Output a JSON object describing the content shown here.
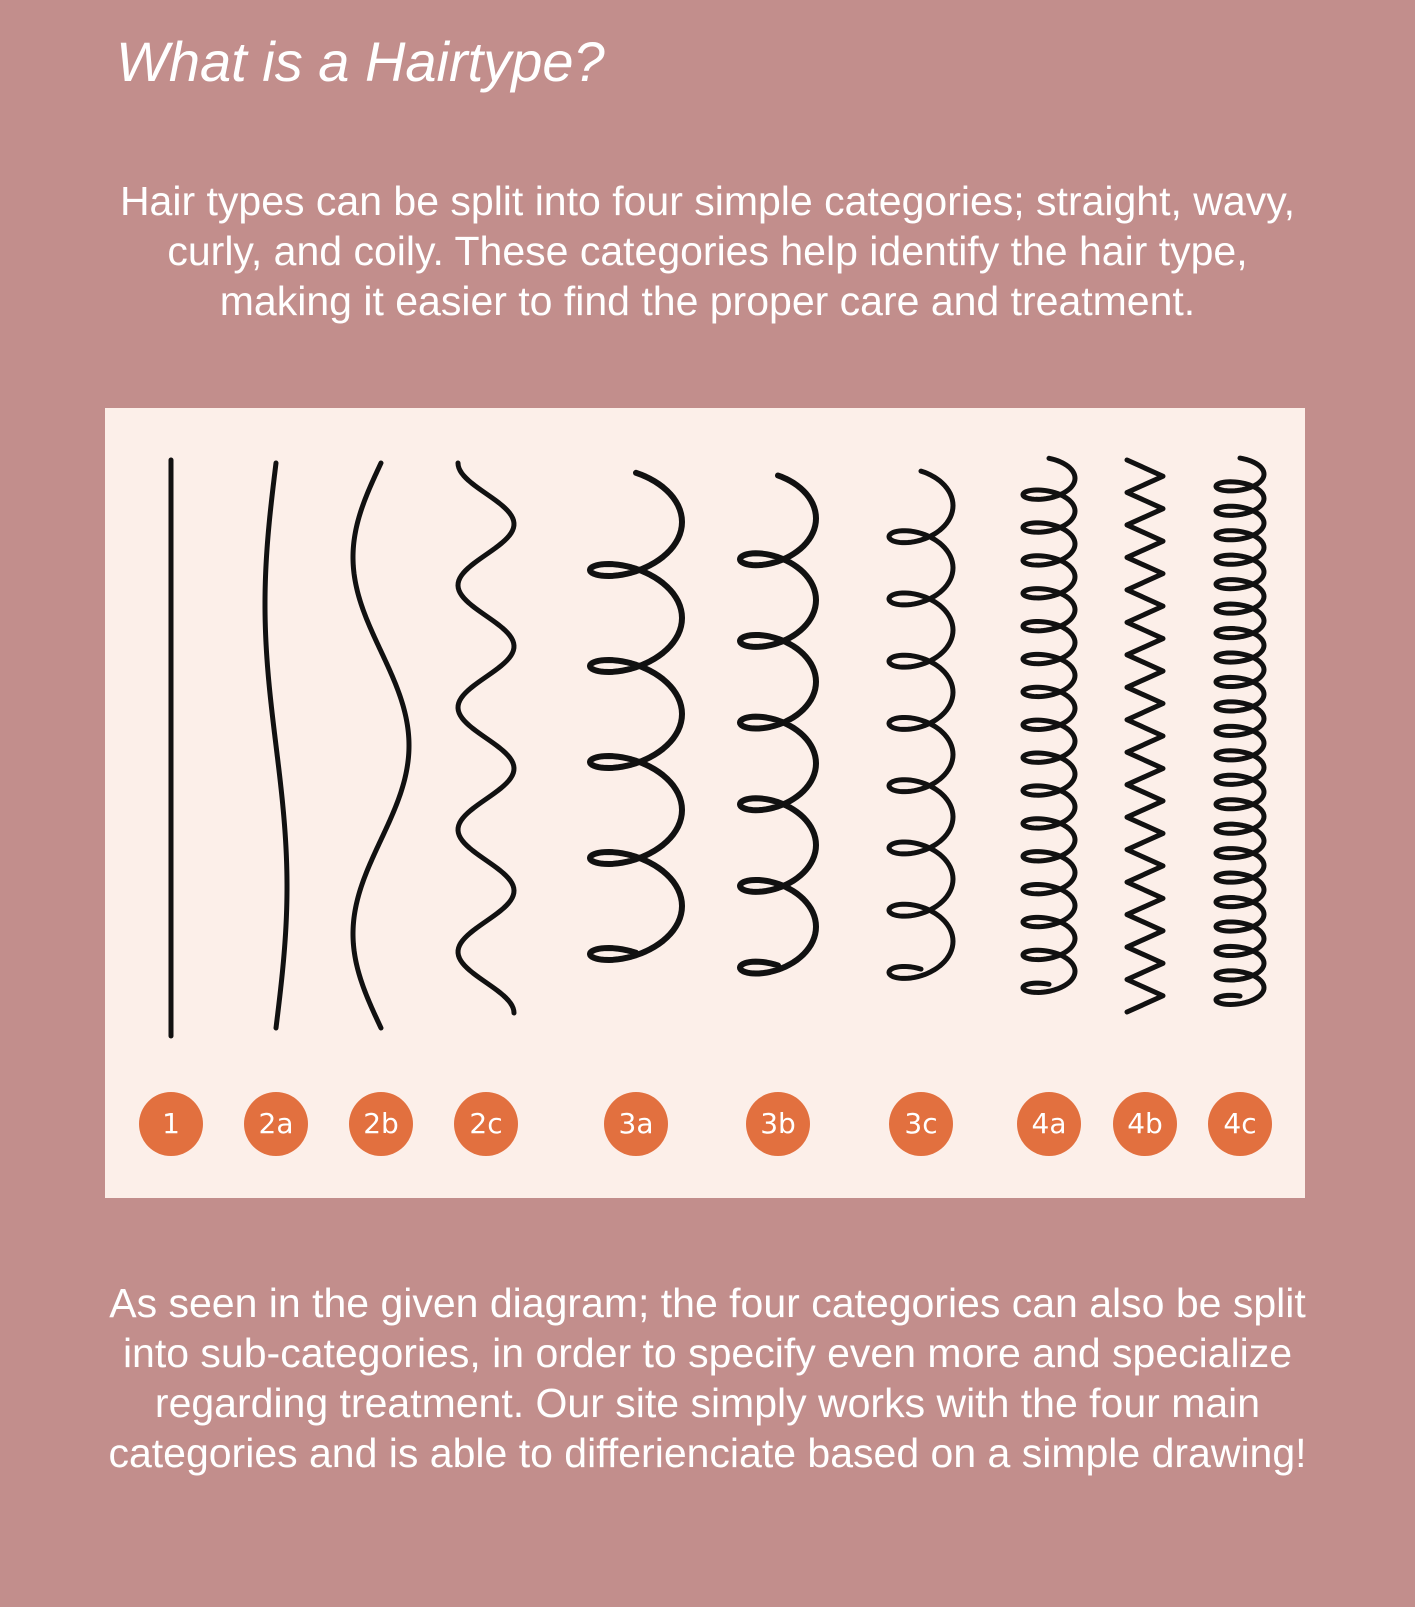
{
  "page": {
    "title": "What is a Hairtype?",
    "intro": "Hair types can be split into four simple categories; straight, wavy, curly, and coily. These categories help identify the hair type, making it easier to find the proper care and treatment.",
    "outro": "As seen in the given diagram; the four categories can also be split into sub-categories, in order to specify even more and specialize regarding treatment. Our site simply works with the four main categories and is able to differienciate based on a simple drawing!"
  },
  "diagram": {
    "stroke_color": "#111111",
    "badge_color": "#e2703f",
    "background_color": "#fcefe9",
    "hair_types": [
      {
        "label": "1"
      },
      {
        "label": "2a"
      },
      {
        "label": "2b"
      },
      {
        "label": "2c"
      },
      {
        "label": "3a"
      },
      {
        "label": "3b"
      },
      {
        "label": "3c"
      },
      {
        "label": "4a"
      },
      {
        "label": "4b"
      },
      {
        "label": "4c"
      }
    ]
  }
}
